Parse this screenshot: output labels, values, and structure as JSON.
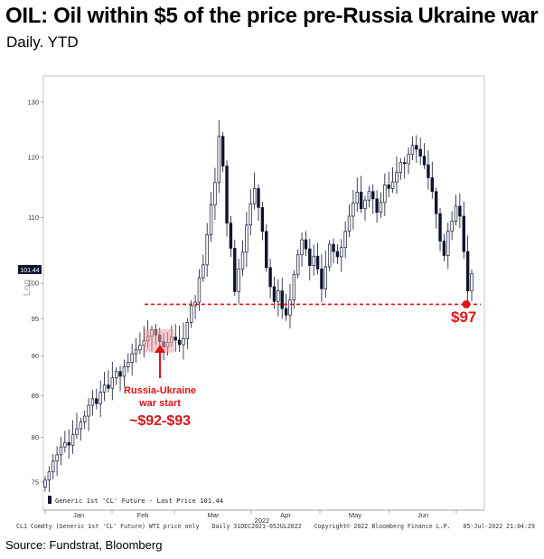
{
  "header": {
    "title": "OIL: Oil within $5 of the price pre-Russia Ukraine war",
    "subtitle": "Daily. YTD"
  },
  "footer": {
    "left": "CL1 Comdty (Generic 1st 'CL' Future) WTI price only",
    "range": "Daily 31DEC2021-05JUL2022",
    "copyright": "Copyright© 2022 Bloomberg Finance L.P.",
    "stamp": "05-Jul-2022 21:04:29",
    "source": "Source: Fundstrat, Bloomberg"
  },
  "chart_data": {
    "type": "candlestick",
    "ylim": [
      72,
      135
    ],
    "y_scale": "log",
    "ylabel": "Log",
    "yticks": [
      75,
      80,
      85,
      90,
      95,
      100,
      110,
      120,
      130
    ],
    "month_labels": [
      "Jan",
      "Feb",
      "Mar",
      "Apr",
      "May",
      "Jun"
    ],
    "year_label": "2022",
    "last_price": 101.44,
    "last_price_label": "101.44",
    "legend": "Generic 1st 'CL' Future - Last Price 101.44",
    "colors": {
      "up": "#ffffff",
      "down": "#0f1530",
      "reference": "#e01515",
      "annotation": "#d9141a"
    },
    "reference_line": {
      "value": 97,
      "label": "$97"
    },
    "annotation": {
      "line1": "Russia-Ukraine",
      "line2": "war start",
      "price": "~$92-$93",
      "range": [
        90.5,
        93.5
      ]
    },
    "closes": [
      75.2,
      76.1,
      77.3,
      78.0,
      78.9,
      79.4,
      79.1,
      80.3,
      81.0,
      81.8,
      82.5,
      83.8,
      84.6,
      84.0,
      85.4,
      86.3,
      85.9,
      87.2,
      88.0,
      87.4,
      88.6,
      89.2,
      90.3,
      90.8,
      91.4,
      92.0,
      92.6,
      93.5,
      92.8,
      91.9,
      91.2,
      91.8,
      92.5,
      92.1,
      91.5,
      92.3,
      94.5,
      96.8,
      97.3,
      100.8,
      102.7,
      107.3,
      112.0,
      115.7,
      123.7,
      118.5,
      109.1,
      105.2,
      98.8,
      102.1,
      104.6,
      108.8,
      112.2,
      114.7,
      111.6,
      107.8,
      102.3,
      99.5,
      97.4,
      98.9,
      96.4,
      95.5,
      97.6,
      101.3,
      104.2,
      106.5,
      105.1,
      102.6,
      104.0,
      102.1,
      99.2,
      102.4,
      105.8,
      104.7,
      103.9,
      105.3,
      107.8,
      110.2,
      112.3,
      114.1,
      111.4,
      112.8,
      114.2,
      113.0,
      110.8,
      112.4,
      115.3,
      114.7,
      115.8,
      117.4,
      119.1,
      118.9,
      120.5,
      122.1,
      121.4,
      120.2,
      118.7,
      116.5,
      114.2,
      110.6,
      106.3,
      104.1,
      107.8,
      109.4,
      111.8,
      110.2,
      104.7,
      98.9,
      101.4
    ]
  }
}
